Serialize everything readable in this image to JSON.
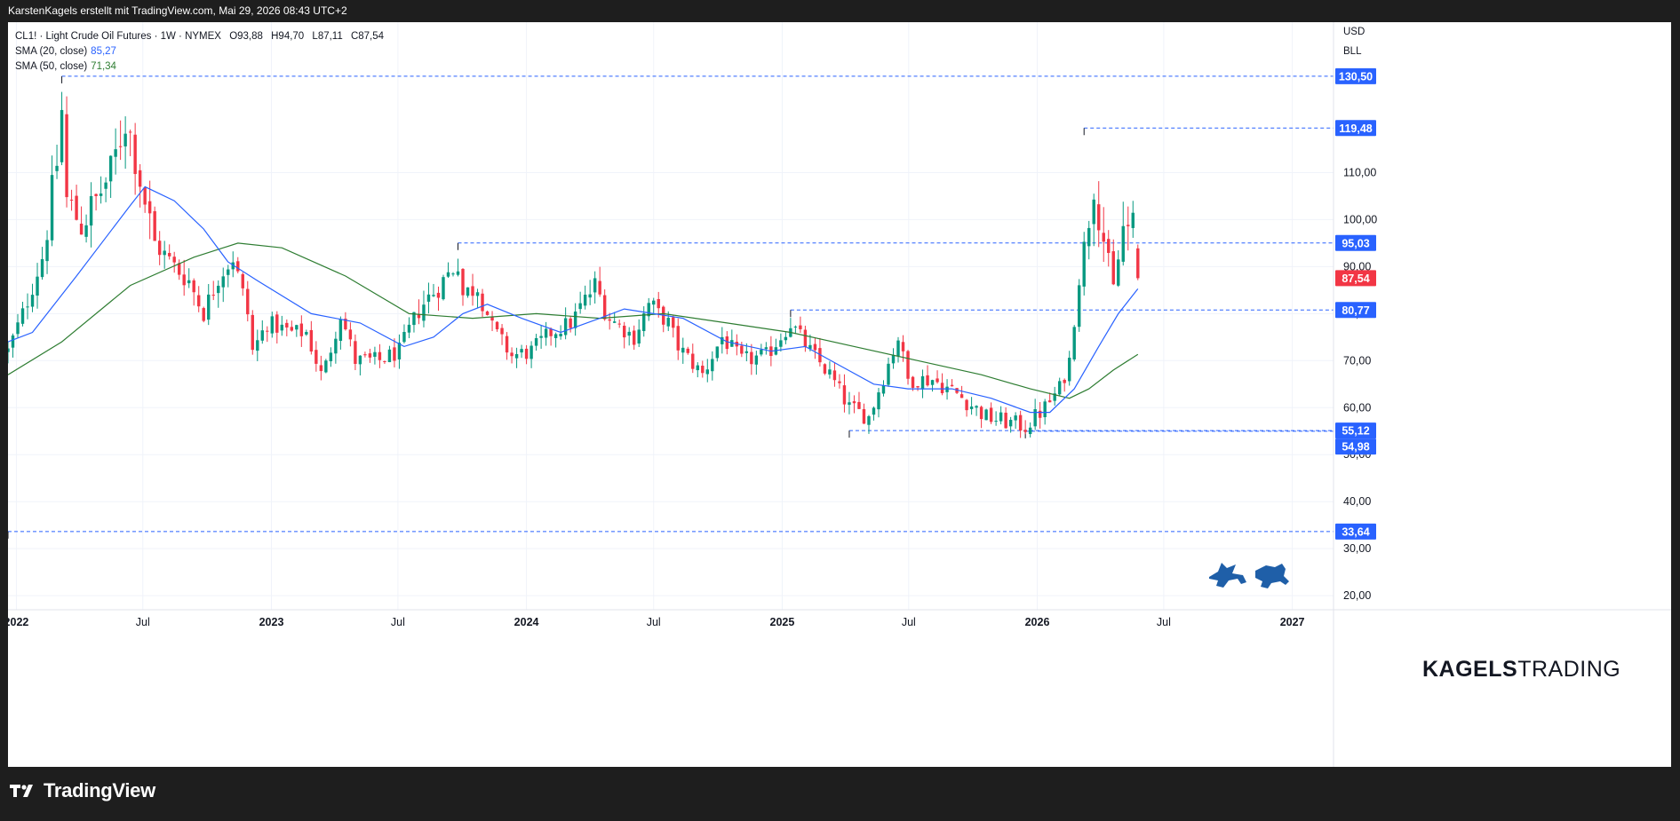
{
  "header": {
    "attribution": "KarstenKagels erstellt mit TradingView.com, Mai 29, 2026 08:43 UTC+2"
  },
  "legend": {
    "symbol": "CL1! · Light Crude Oil Futures · 1W · NYMEX",
    "ohlc": {
      "open": "O93,88",
      "high": "H94,70",
      "low": "L87,11",
      "close": "C87,54"
    },
    "sma20": {
      "label": "SMA (20, close)",
      "value": "85,27",
      "color": "#2962ff"
    },
    "sma50": {
      "label": "SMA (50, close)",
      "value": "71,34",
      "color": "#2e7d32"
    }
  },
  "scale_units": {
    "currency": "USD",
    "unit": "BLL"
  },
  "brand": {
    "bold": "KAGELS",
    "light": "TRADING"
  },
  "footer": {
    "logo_text": "TradingView"
  },
  "chart_data": {
    "type": "candlestick",
    "interval": "1W",
    "x_axis": {
      "range": [
        "2021-12-20",
        "2027-03-01"
      ],
      "tick_labels": [
        "2022",
        "Jul",
        "2023",
        "Jul",
        "2024",
        "Jul",
        "2025",
        "Jul",
        "2026",
        "Jul",
        "2027"
      ],
      "tick_dates": [
        "2022-01-01",
        "2022-07-01",
        "2023-01-01",
        "2023-07-01",
        "2024-01-01",
        "2024-07-01",
        "2025-01-01",
        "2025-07-01",
        "2026-01-01",
        "2026-07-01",
        "2027-01-01"
      ]
    },
    "y_axis": {
      "range": [
        17,
        142
      ],
      "tick_labels": [
        "20,00",
        "30,00",
        "40,00",
        "50,00",
        "60,00",
        "70,00",
        "80,00",
        "90,00",
        "100,00",
        "110,00"
      ],
      "tick_values": [
        20,
        30,
        40,
        50,
        60,
        70,
        80,
        90,
        100,
        110
      ],
      "side": "right"
    },
    "grid": true,
    "colors": {
      "up": "#089981",
      "down": "#f23645",
      "level_line": "#2962ff",
      "sma20": "#2962ff",
      "sma50": "#2e7d32",
      "last_price": "#f23645"
    },
    "levels": [
      {
        "value": 130.5,
        "label": "130,50",
        "start": "2022-03-07"
      },
      {
        "value": 119.48,
        "label": "119,48",
        "start": "2026-03-09"
      },
      {
        "value": 95.03,
        "label": "95,03",
        "start": "2023-09-25"
      },
      {
        "value": 80.77,
        "label": "80,77",
        "start": "2025-01-13"
      },
      {
        "value": 55.12,
        "label": "55,12",
        "start": "2025-04-07"
      },
      {
        "value": 54.98,
        "label": "54,98",
        "start": "2025-12-15"
      },
      {
        "value": 33.64,
        "label": "33,64",
        "start": "2021-12-20"
      }
    ],
    "last_price": {
      "value": 87.54,
      "label": "87,54"
    },
    "anchors": [
      [
        "2021-12-20",
        72
      ],
      [
        "2022-01-10",
        80
      ],
      [
        "2022-02-07",
        92
      ],
      [
        "2022-02-28",
        112
      ],
      [
        "2022-03-07",
        123
      ],
      [
        "2022-03-14",
        104
      ],
      [
        "2022-04-04",
        99
      ],
      [
        "2022-04-25",
        104
      ],
      [
        "2022-05-16",
        110
      ],
      [
        "2022-06-06",
        121
      ],
      [
        "2022-06-13",
        118
      ],
      [
        "2022-07-04",
        104
      ],
      [
        "2022-07-18",
        95
      ],
      [
        "2022-08-15",
        90
      ],
      [
        "2022-09-05",
        87
      ],
      [
        "2022-09-26",
        80
      ],
      [
        "2022-10-17",
        88
      ],
      [
        "2022-11-07",
        92
      ],
      [
        "2022-11-28",
        80
      ],
      [
        "2022-12-05",
        72
      ],
      [
        "2022-12-26",
        78
      ],
      [
        "2023-01-30",
        76
      ],
      [
        "2023-02-20",
        76
      ],
      [
        "2023-03-13",
        67
      ],
      [
        "2023-03-20",
        69
      ],
      [
        "2023-04-10",
        80
      ],
      [
        "2023-05-01",
        70
      ],
      [
        "2023-06-05",
        70
      ],
      [
        "2023-07-03",
        72
      ],
      [
        "2023-07-31",
        81
      ],
      [
        "2023-09-04",
        87
      ],
      [
        "2023-09-25",
        91
      ],
      [
        "2023-10-02",
        84
      ],
      [
        "2023-10-23",
        86
      ],
      [
        "2023-11-13",
        77
      ],
      [
        "2023-12-11",
        71
      ],
      [
        "2024-01-08",
        72
      ],
      [
        "2024-02-05",
        76
      ],
      [
        "2024-03-04",
        78
      ],
      [
        "2024-04-08",
        86
      ],
      [
        "2024-04-29",
        79
      ],
      [
        "2024-06-03",
        75
      ],
      [
        "2024-06-24",
        82
      ],
      [
        "2024-07-22",
        78
      ],
      [
        "2024-08-05",
        73
      ],
      [
        "2024-09-09",
        67
      ],
      [
        "2024-10-07",
        75
      ],
      [
        "2024-11-04",
        70
      ],
      [
        "2024-12-09",
        71
      ],
      [
        "2025-01-13",
        78
      ],
      [
        "2025-02-10",
        72
      ],
      [
        "2025-03-10",
        67
      ],
      [
        "2025-04-07",
        60
      ],
      [
        "2025-05-05",
        58
      ],
      [
        "2025-06-16",
        75
      ],
      [
        "2025-06-30",
        66
      ],
      [
        "2025-08-04",
        66
      ],
      [
        "2025-09-08",
        63
      ],
      [
        "2025-10-20",
        58
      ],
      [
        "2025-12-15",
        56
      ],
      [
        "2026-01-12",
        60
      ],
      [
        "2026-02-02",
        64
      ],
      [
        "2026-02-16",
        70
      ],
      [
        "2026-03-02",
        88
      ],
      [
        "2026-03-09",
        94
      ],
      [
        "2026-03-23",
        108
      ],
      [
        "2026-04-06",
        96
      ],
      [
        "2026-04-20",
        85
      ],
      [
        "2026-05-04",
        98
      ],
      [
        "2026-05-18",
        98
      ],
      [
        "2026-05-25",
        87.54
      ]
    ],
    "sma20_path": [
      [
        "2021-12-20",
        74
      ],
      [
        "2022-01-24",
        76
      ],
      [
        "2022-03-28",
        88
      ],
      [
        "2022-06-13",
        103
      ],
      [
        "2022-07-04",
        107
      ],
      [
        "2022-08-15",
        104
      ],
      [
        "2022-09-26",
        98
      ],
      [
        "2022-10-31",
        91
      ],
      [
        "2022-12-12",
        87
      ],
      [
        "2023-02-27",
        80
      ],
      [
        "2023-05-08",
        78
      ],
      [
        "2023-07-10",
        73
      ],
      [
        "2023-08-21",
        75
      ],
      [
        "2023-10-02",
        80
      ],
      [
        "2023-11-06",
        82
      ],
      [
        "2023-12-25",
        79
      ],
      [
        "2024-02-19",
        76
      ],
      [
        "2024-04-15",
        79
      ],
      [
        "2024-05-20",
        81
      ],
      [
        "2024-07-01",
        80
      ],
      [
        "2024-08-12",
        79
      ],
      [
        "2024-10-14",
        74
      ],
      [
        "2024-12-16",
        72
      ],
      [
        "2025-02-03",
        73
      ],
      [
        "2025-03-24",
        69
      ],
      [
        "2025-05-12",
        65
      ],
      [
        "2025-06-30",
        64
      ],
      [
        "2025-09-01",
        64
      ],
      [
        "2025-10-27",
        62
      ],
      [
        "2025-12-22",
        59
      ],
      [
        "2026-01-19",
        59
      ],
      [
        "2026-02-23",
        64
      ],
      [
        "2026-03-30",
        73
      ],
      [
        "2026-04-27",
        80
      ],
      [
        "2026-05-25",
        85.27
      ]
    ],
    "sma50_path": [
      [
        "2021-12-20",
        67
      ],
      [
        "2022-03-07",
        74
      ],
      [
        "2022-06-13",
        86
      ],
      [
        "2022-09-12",
        92
      ],
      [
        "2022-11-14",
        95
      ],
      [
        "2023-01-16",
        94
      ],
      [
        "2023-04-17",
        88
      ],
      [
        "2023-07-17",
        80
      ],
      [
        "2023-10-16",
        79
      ],
      [
        "2024-01-15",
        80
      ],
      [
        "2024-04-15",
        79
      ],
      [
        "2024-07-15",
        80
      ],
      [
        "2024-10-14",
        78
      ],
      [
        "2025-01-13",
        76
      ],
      [
        "2025-04-14",
        73
      ],
      [
        "2025-07-14",
        70
      ],
      [
        "2025-10-13",
        67
      ],
      [
        "2025-12-22",
        64
      ],
      [
        "2026-02-16",
        62
      ],
      [
        "2026-03-16",
        64
      ],
      [
        "2026-04-20",
        68
      ],
      [
        "2026-05-25",
        71.34
      ]
    ]
  }
}
